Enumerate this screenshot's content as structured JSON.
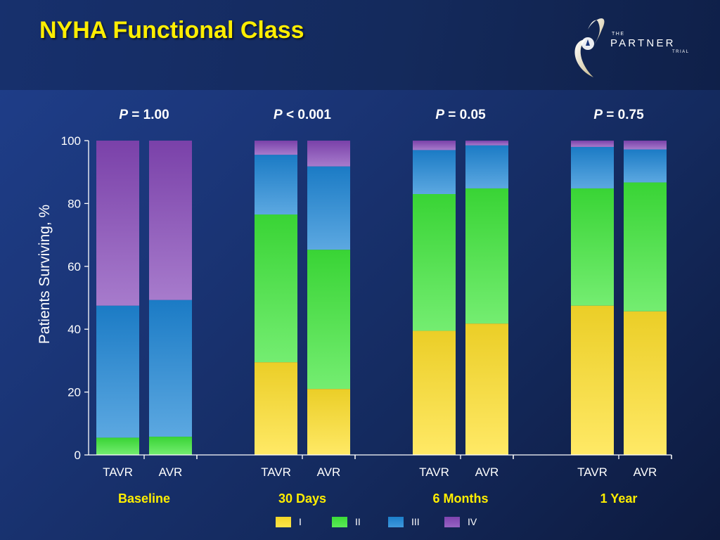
{
  "title": "NYHA Functional Class",
  "logo": {
    "the": "THE",
    "partner": "PARTNER",
    "trial": "TRIAL"
  },
  "chart_data": {
    "type": "bar",
    "stacked": true,
    "ylabel": "Patients Surviving, %",
    "ylim": [
      0,
      100
    ],
    "yticks": [
      0,
      20,
      40,
      60,
      80,
      100
    ],
    "categories": [
      "TAVR",
      "AVR",
      "TAVR",
      "AVR",
      "TAVR",
      "AVR",
      "TAVR",
      "AVR"
    ],
    "groups": [
      {
        "label": "Baseline",
        "p_prefix": "P",
        "p_rest": " = 1.00",
        "bars": [
          0,
          1
        ]
      },
      {
        "label": "30 Days",
        "p_prefix": "P",
        "p_rest": " < 0.001",
        "bars": [
          2,
          3
        ]
      },
      {
        "label": "6 Months",
        "p_prefix": "P",
        "p_rest": " = 0.05",
        "bars": [
          4,
          5
        ]
      },
      {
        "label": "1 Year",
        "p_prefix": "P",
        "p_rest": " = 0.75",
        "bars": [
          6,
          7
        ]
      }
    ],
    "series": [
      {
        "name": "I",
        "color": "#ffe02a",
        "values": [
          0,
          0,
          29.5,
          21,
          39.5,
          41.8,
          47.5,
          45.7
        ]
      },
      {
        "name": "II",
        "color": "#3ee63a",
        "values": [
          5.5,
          5.8,
          47,
          44.3,
          43.5,
          43,
          37.3,
          41
        ]
      },
      {
        "name": "III",
        "color": "#1d86d6",
        "values": [
          42,
          43.5,
          19,
          26.5,
          14,
          13.7,
          13.2,
          10.5
        ]
      },
      {
        "name": "IV",
        "color": "#8547b8",
        "values": [
          52.5,
          50.7,
          4.5,
          8.2,
          3,
          1.5,
          2,
          2.8
        ]
      }
    ],
    "legend_position": "bottom-center",
    "grid": false
  }
}
